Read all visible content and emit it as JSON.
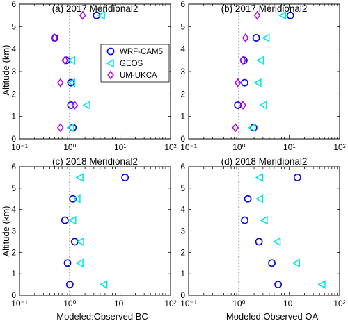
{
  "figure": {
    "xlabel_left": "Modeled:Observed BC",
    "xlabel_right": "Modeled:Observed OA",
    "ylabel": "Altitude (km)"
  },
  "legend": {
    "placement": "inside panel (a), upper right",
    "items": [
      {
        "name": "WRF-CAM5",
        "marker": "circle",
        "color": "#0000e6"
      },
      {
        "name": "GEOS",
        "marker": "triangle-left",
        "color": "#00e5e5"
      },
      {
        "name": "UM-UKCA",
        "marker": "diamond",
        "color": "#b400e6"
      }
    ]
  },
  "chart_data": [
    {
      "type": "scatter",
      "title": "(a) 2017 Meridional2",
      "xscale": "log",
      "xlim": [
        0.1,
        100
      ],
      "ylim": [
        0,
        6
      ],
      "x_ticklabels": [
        "10⁻¹",
        "10⁰",
        "10¹",
        "10²"
      ],
      "y_ticks": [
        0,
        1,
        2,
        3,
        4,
        5,
        6
      ],
      "reference_line_x": 1,
      "series": [
        {
          "name": "WRF-CAM5",
          "points": [
            [
              3.4,
              5.5
            ],
            [
              0.5,
              4.5
            ],
            [
              0.85,
              3.5
            ],
            [
              1.05,
              2.5
            ],
            [
              1.05,
              1.5
            ],
            [
              1.15,
              0.5
            ]
          ]
        },
        {
          "name": "GEOS",
          "points": [
            [
              4.3,
              5.5
            ],
            [
              1.1,
              3.5
            ],
            [
              1.1,
              2.5
            ],
            [
              2.2,
              1.5
            ],
            [
              1.05,
              0.5
            ]
          ]
        },
        {
          "name": "UM-UKCA",
          "points": [
            [
              1.8,
              5.5
            ],
            [
              0.5,
              4.5
            ],
            [
              0.8,
              3.5
            ],
            [
              0.65,
              2.5
            ],
            [
              1.25,
              1.5
            ],
            [
              0.65,
              0.5
            ]
          ]
        }
      ]
    },
    {
      "type": "scatter",
      "title": "(b) 2017 Meridional2",
      "xscale": "log",
      "xlim": [
        0.1,
        100
      ],
      "ylim": [
        0,
        6
      ],
      "x_ticklabels": [
        "10⁻¹",
        "10⁰",
        "10¹",
        "10²"
      ],
      "y_ticks": [
        0,
        1,
        2,
        3,
        4,
        5,
        6
      ],
      "reference_line_x": 1,
      "series": [
        {
          "name": "WRF-CAM5",
          "points": [
            [
              10.5,
              5.5
            ],
            [
              2.2,
              4.5
            ],
            [
              1.25,
              3.5
            ],
            [
              1.3,
              2.5
            ],
            [
              0.95,
              1.5
            ],
            [
              1.95,
              0.5
            ]
          ]
        },
        {
          "name": "GEOS",
          "points": [
            [
              7.5,
              5.5
            ],
            [
              3.5,
              4.5
            ],
            [
              2.7,
              3.5
            ],
            [
              2.4,
              2.5
            ],
            [
              3.1,
              1.5
            ],
            [
              1.85,
              0.5
            ]
          ]
        },
        {
          "name": "UM-UKCA",
          "points": [
            [
              2.3,
              5.5
            ],
            [
              1.35,
              4.5
            ],
            [
              1.2,
              3.5
            ],
            [
              0.95,
              2.5
            ],
            [
              1.2,
              1.5
            ],
            [
              0.85,
              0.5
            ]
          ]
        }
      ]
    },
    {
      "type": "scatter",
      "title": "(c) 2018 Meridional2",
      "xscale": "log",
      "xlim": [
        0.1,
        100
      ],
      "ylim": [
        0,
        6
      ],
      "x_ticklabels": [
        "10⁻¹",
        "10⁰",
        "10¹",
        "10²"
      ],
      "y_ticks": [
        0,
        1,
        2,
        3,
        4,
        5,
        6
      ],
      "reference_line_x": 1,
      "series": [
        {
          "name": "WRF-CAM5",
          "points": [
            [
              12.5,
              5.5
            ],
            [
              1.15,
              4.5
            ],
            [
              0.8,
              3.5
            ],
            [
              1.25,
              2.5
            ],
            [
              0.9,
              1.5
            ],
            [
              1.0,
              0.5
            ]
          ]
        },
        {
          "name": "GEOS",
          "points": [
            [
              1.6,
              5.5
            ],
            [
              1.4,
              4.5
            ],
            [
              1.15,
              3.5
            ],
            [
              1.65,
              2.5
            ],
            [
              1.6,
              1.5
            ],
            [
              4.8,
              0.5
            ]
          ]
        }
      ]
    },
    {
      "type": "scatter",
      "title": "(d) 2018 Meridional2",
      "xscale": "log",
      "xlim": [
        0.1,
        100
      ],
      "ylim": [
        0,
        6
      ],
      "x_ticklabels": [
        "10⁻¹",
        "10⁰",
        "10¹",
        "10²"
      ],
      "y_ticks": [
        0,
        1,
        2,
        3,
        4,
        5,
        6
      ],
      "reference_line_x": 1,
      "series": [
        {
          "name": "WRF-CAM5",
          "points": [
            [
              14.5,
              5.5
            ],
            [
              1.5,
              4.5
            ],
            [
              1.3,
              3.5
            ],
            [
              2.5,
              2.5
            ],
            [
              4.5,
              1.5
            ],
            [
              6.0,
              0.5
            ]
          ]
        },
        {
          "name": "GEOS",
          "points": [
            [
              2.6,
              5.5
            ],
            [
              2.6,
              4.5
            ],
            [
              3.2,
              3.5
            ],
            [
              5.8,
              2.5
            ],
            [
              14.0,
              1.5
            ],
            [
              45.0,
              0.5
            ]
          ]
        }
      ]
    }
  ]
}
